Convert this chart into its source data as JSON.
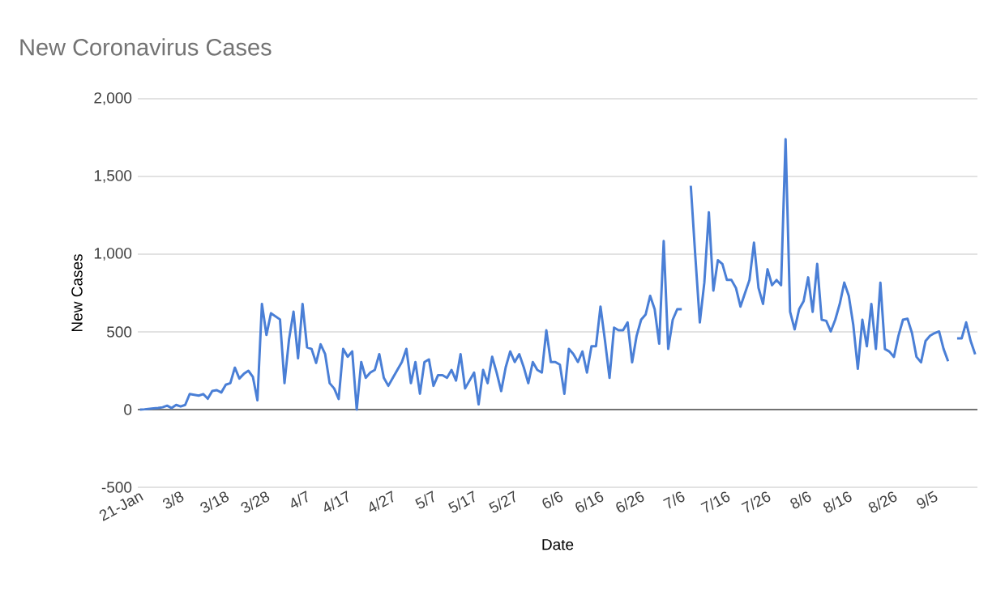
{
  "chart_data": {
    "type": "line",
    "title": "New Coronavirus Cases",
    "xlabel": "Date",
    "ylabel": "New Cases",
    "categories": [
      "21-Jan",
      null,
      null,
      null,
      null,
      null,
      null,
      null,
      null,
      "3/8",
      null,
      null,
      null,
      null,
      null,
      null,
      null,
      null,
      null,
      "3/18",
      null,
      null,
      null,
      null,
      null,
      null,
      null,
      null,
      "3/28",
      null,
      null,
      null,
      null,
      null,
      null,
      null,
      null,
      "4/7",
      null,
      null,
      null,
      null,
      null,
      null,
      null,
      null,
      "4/17",
      null,
      null,
      null,
      null,
      null,
      null,
      null,
      null,
      null,
      "4/27",
      null,
      null,
      null,
      null,
      null,
      null,
      null,
      null,
      "5/7",
      null,
      null,
      null,
      null,
      null,
      null,
      null,
      null,
      "5/17",
      null,
      null,
      null,
      null,
      null,
      null,
      null,
      null,
      "5/27",
      null,
      null,
      null,
      null,
      null,
      null,
      null,
      null,
      null,
      "6/6",
      null,
      null,
      null,
      null,
      null,
      null,
      null,
      null,
      "6/16",
      null,
      null,
      null,
      null,
      null,
      null,
      null,
      null,
      "6/26",
      null,
      null,
      null,
      null,
      null,
      null,
      null,
      null,
      "7/6",
      null,
      null,
      null,
      null,
      null,
      null,
      null,
      null,
      null,
      "7/16",
      null,
      null,
      null,
      null,
      null,
      null,
      null,
      null,
      "7/26",
      null,
      null,
      null,
      null,
      null,
      null,
      null,
      null,
      "8/6",
      null,
      null,
      null,
      null,
      null,
      null,
      null,
      null,
      "8/16",
      null,
      null,
      null,
      null,
      null,
      null,
      null,
      null,
      null,
      "8/26",
      null,
      null,
      null,
      null,
      null,
      null,
      null,
      null,
      "9/5",
      null,
      null,
      null,
      null,
      null,
      null,
      null,
      null,
      null
    ],
    "values": [
      0,
      2,
      5,
      8,
      10,
      15,
      25,
      10,
      30,
      20,
      30,
      100,
      95,
      90,
      100,
      70,
      120,
      125,
      110,
      160,
      170,
      270,
      200,
      230,
      250,
      210,
      60,
      680,
      480,
      620,
      600,
      580,
      170,
      450,
      630,
      330,
      680,
      400,
      390,
      300,
      420,
      357,
      170,
      136,
      68,
      391,
      340,
      374,
      0,
      306,
      204,
      238,
      255,
      357,
      204,
      153,
      204,
      255,
      306,
      391,
      170,
      306,
      102,
      306,
      323,
      153,
      221,
      221,
      204,
      255,
      187,
      357,
      136,
      187,
      238,
      34,
      255,
      170,
      340,
      238,
      119,
      272,
      374,
      306,
      357,
      272,
      170,
      306,
      255,
      238,
      510,
      306,
      306,
      289,
      102,
      391,
      357,
      306,
      374,
      238,
      408,
      408,
      663,
      442,
      204,
      527,
      510,
      510,
      561,
      304,
      475,
      578,
      612,
      732,
      646,
      424,
      1084,
      390,
      578,
      646,
      646,
      null,
      1440,
      988,
      561,
      817,
      1269,
      766,
      961,
      937,
      834,
      834,
      783,
      663,
      749,
      834,
      1074,
      783,
      680,
      903,
      800,
      834,
      800,
      1740,
      629,
      516,
      646,
      698,
      851,
      629,
      937,
      578,
      571,
      503,
      578,
      680,
      817,
      732,
      544,
      263,
      578,
      407,
      680,
      390,
      817,
      390,
      373,
      339,
      475,
      578,
      585,
      492,
      339,
      304,
      441,
      475,
      492,
      503,
      390,
      311,
      null,
      458,
      458,
      561,
      441,
      356
    ],
    "color": "#4a7fd6",
    "ylim": [
      -500,
      2000
    ],
    "yticks": [
      {
        "value": -500,
        "label": "-500"
      },
      0,
      500,
      {
        "value": 1000,
        "label": "1,000"
      },
      {
        "value": 1500,
        "label": "1,500"
      },
      {
        "value": 2000,
        "label": "2,000"
      }
    ],
    "grid": "y",
    "marker": "none",
    "line_style": "solid"
  }
}
